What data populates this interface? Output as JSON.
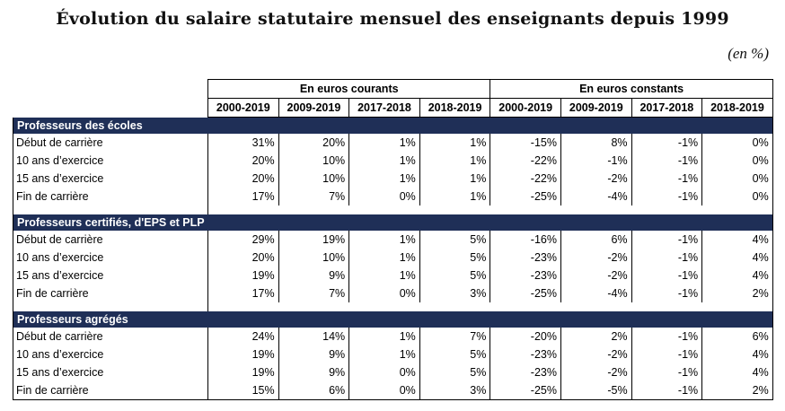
{
  "title": "Évolution du salaire statutaire mensuel des enseignants depuis 1999",
  "unit": "(en %)",
  "group_headers": [
    "En euros courants",
    "En euros constants"
  ],
  "columns": [
    "2000-2019",
    "2009-2019",
    "2017-2018",
    "2018-2019",
    "2000-2019",
    "2009-2019",
    "2017-2018",
    "2018-2019"
  ],
  "sections": [
    {
      "name": "Professeurs des écoles",
      "rows": [
        {
          "label": "Début de carrière",
          "values": [
            "31%",
            "20%",
            "1%",
            "1%",
            "-15%",
            "8%",
            "-1%",
            "0%"
          ]
        },
        {
          "label": "10 ans d’exercice",
          "values": [
            "20%",
            "10%",
            "1%",
            "1%",
            "-22%",
            "-1%",
            "-1%",
            "0%"
          ]
        },
        {
          "label": "15 ans d’exercice",
          "values": [
            "20%",
            "10%",
            "1%",
            "1%",
            "-22%",
            "-2%",
            "-1%",
            "0%"
          ]
        },
        {
          "label": "Fin de carrière",
          "values": [
            "17%",
            "7%",
            "0%",
            "1%",
            "-25%",
            "-4%",
            "-1%",
            "0%"
          ]
        }
      ]
    },
    {
      "name": "Professeurs certifiés, d'EPS et PLP",
      "rows": [
        {
          "label": "Début de carrière",
          "values": [
            "29%",
            "19%",
            "1%",
            "5%",
            "-16%",
            "6%",
            "-1%",
            "4%"
          ]
        },
        {
          "label": "10 ans d’exercice",
          "values": [
            "20%",
            "10%",
            "1%",
            "5%",
            "-23%",
            "-2%",
            "-1%",
            "4%"
          ]
        },
        {
          "label": "15 ans d’exercice",
          "values": [
            "19%",
            "9%",
            "1%",
            "5%",
            "-23%",
            "-2%",
            "-1%",
            "4%"
          ]
        },
        {
          "label": "Fin de carrière",
          "values": [
            "17%",
            "7%",
            "0%",
            "3%",
            "-25%",
            "-4%",
            "-1%",
            "2%"
          ]
        }
      ]
    },
    {
      "name": "Professeurs agrégés",
      "rows": [
        {
          "label": "Début de carrière",
          "values": [
            "24%",
            "14%",
            "1%",
            "7%",
            "-20%",
            "2%",
            "-1%",
            "6%"
          ]
        },
        {
          "label": "10 ans d’exercice",
          "values": [
            "19%",
            "9%",
            "1%",
            "5%",
            "-23%",
            "-2%",
            "-1%",
            "4%"
          ]
        },
        {
          "label": "15 ans d’exercice",
          "values": [
            "19%",
            "9%",
            "0%",
            "5%",
            "-23%",
            "-2%",
            "-1%",
            "4%"
          ]
        },
        {
          "label": "Fin de carrière",
          "values": [
            "15%",
            "6%",
            "0%",
            "3%",
            "-25%",
            "-5%",
            "-1%",
            "2%"
          ]
        }
      ]
    }
  ]
}
